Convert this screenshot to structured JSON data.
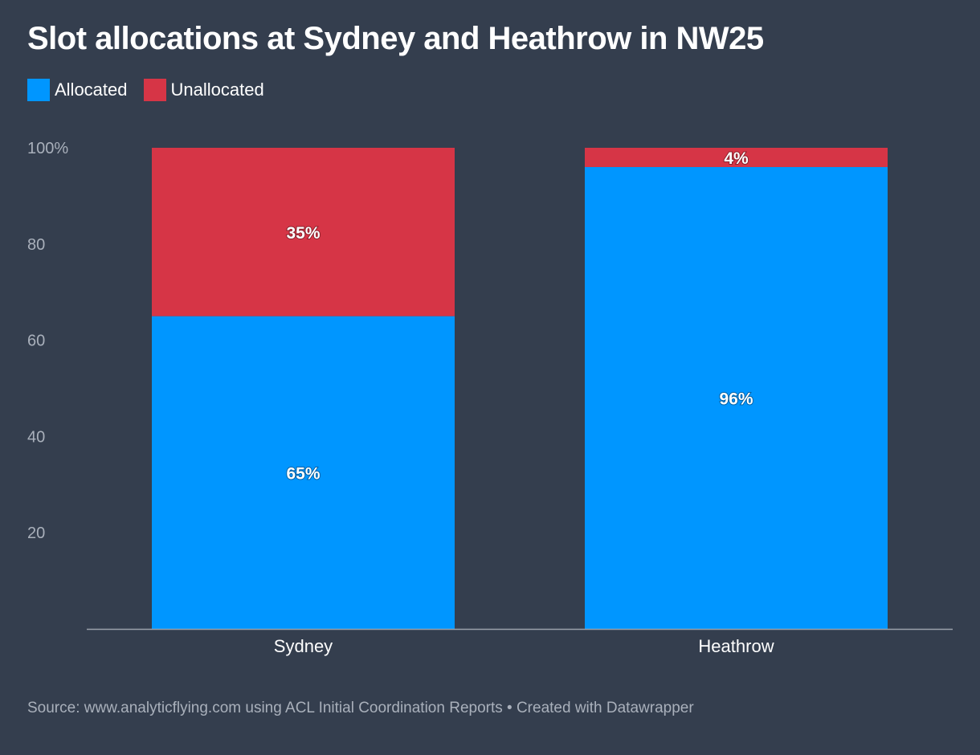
{
  "chart_data": {
    "type": "bar",
    "stacked": true,
    "title": "Slot allocations at Sydney and Heathrow in NW25",
    "categories": [
      "Sydney",
      "Heathrow"
    ],
    "series": [
      {
        "name": "Allocated",
        "values": [
          65,
          96
        ],
        "labels": [
          "65%",
          "96%"
        ],
        "color": "#0096ff"
      },
      {
        "name": "Unallocated",
        "values": [
          35,
          4
        ],
        "labels": [
          "35%",
          "4%"
        ],
        "color": "#d63546"
      }
    ],
    "yticks": [
      {
        "value": 100,
        "label": "100%"
      },
      {
        "value": 80,
        "label": "80"
      },
      {
        "value": 60,
        "label": "60"
      },
      {
        "value": 40,
        "label": "40"
      },
      {
        "value": 20,
        "label": "20"
      }
    ],
    "ylim": [
      0,
      100
    ],
    "legend_position": "top-left",
    "grid": false,
    "source": "Source: www.analyticflying.com using ACL Initial Coordination Reports • Created with Datawrapper"
  }
}
